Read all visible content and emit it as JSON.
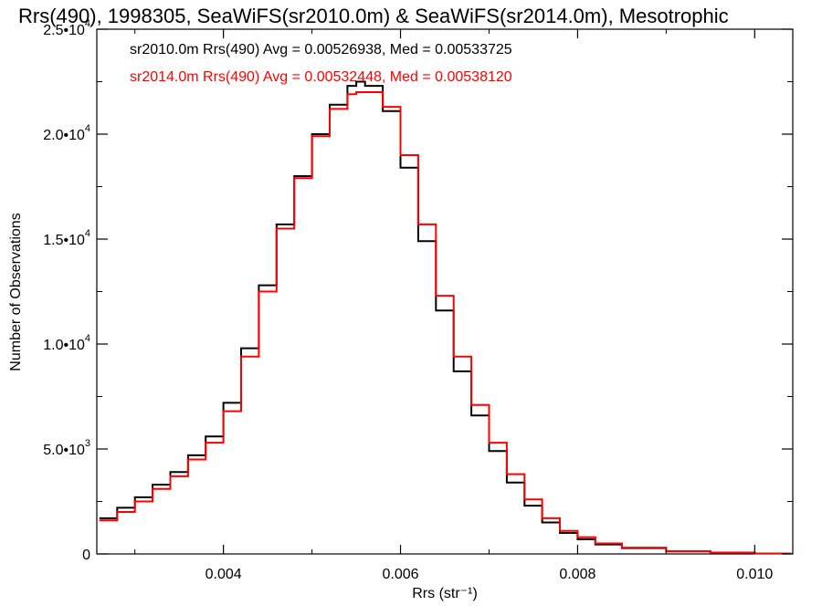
{
  "chart_data": {
    "type": "line",
    "title": "Rrs(490), 1998305, SeaWiFS(sr2010.0m) & SeaWiFS(sr2014.0m), Mesotrophic",
    "xlabel": "Rrs (str⁻¹)",
    "ylabel": "Number of Observations",
    "xlim": [
      0.00257,
      0.01043
    ],
    "ylim": [
      0,
      25000
    ],
    "grid": false,
    "x_ticks": [
      0.004,
      0.006,
      0.008,
      0.01
    ],
    "x_tick_labels": [
      "0.004",
      "0.006",
      "0.008",
      "0.010"
    ],
    "y_ticks": [
      0,
      5000,
      10000,
      15000,
      20000,
      25000
    ],
    "y_tick_labels": [
      {
        "mant": "0",
        "exp": ""
      },
      {
        "mant": "5.0•10",
        "exp": "3"
      },
      {
        "mant": "1.0•10",
        "exp": "4"
      },
      {
        "mant": "1.5•10",
        "exp": "4"
      },
      {
        "mant": "2.0•10",
        "exp": "4"
      },
      {
        "mant": "2.5•10",
        "exp": "4"
      }
    ],
    "legend_position": "top-left",
    "annotations": [
      {
        "text": "sr2010.0m Rrs(490) Avg = 0.00526938, Med = 0.00533725",
        "color": "#000000"
      },
      {
        "text": "sr2014.0m Rrs(490) Avg = 0.00532448, Med = 0.00538120",
        "color": "#ff0000"
      }
    ],
    "series": [
      {
        "color": "#000000",
        "x": [
          0.0026,
          0.0028,
          0.003,
          0.0032,
          0.0034,
          0.0036,
          0.0038,
          0.004,
          0.0042,
          0.0044,
          0.0046,
          0.0048,
          0.005,
          0.0052,
          0.0054,
          0.0055,
          0.0056,
          0.0058,
          0.006,
          0.0062,
          0.0064,
          0.0066,
          0.0068,
          0.007,
          0.0072,
          0.0074,
          0.0076,
          0.0078,
          0.008,
          0.0082,
          0.0085,
          0.009,
          0.0095,
          0.01,
          0.0104
        ],
        "y": [
          1700,
          2200,
          2700,
          3300,
          3900,
          4700,
          5600,
          7200,
          9800,
          12800,
          15700,
          18000,
          20000,
          21400,
          22300,
          22500,
          22300,
          21100,
          18400,
          14900,
          11600,
          8700,
          6600,
          4900,
          3400,
          2300,
          1500,
          1000,
          700,
          450,
          280,
          120,
          60,
          20,
          5
        ]
      },
      {
        "color": "#ff0000",
        "x": [
          0.0026,
          0.0028,
          0.003,
          0.0032,
          0.0034,
          0.0036,
          0.0038,
          0.004,
          0.0042,
          0.0044,
          0.0046,
          0.0048,
          0.005,
          0.0052,
          0.0054,
          0.0055,
          0.0056,
          0.0058,
          0.006,
          0.0062,
          0.0064,
          0.0066,
          0.0068,
          0.007,
          0.0072,
          0.0074,
          0.0076,
          0.0078,
          0.008,
          0.0082,
          0.0085,
          0.009,
          0.0095,
          0.01,
          0.0104
        ],
        "y": [
          1600,
          2000,
          2500,
          3100,
          3700,
          4500,
          5300,
          6800,
          9400,
          12500,
          15500,
          17900,
          19900,
          21200,
          21900,
          22000,
          22000,
          21300,
          19000,
          15700,
          12300,
          9400,
          7100,
          5300,
          3800,
          2600,
          1700,
          1100,
          800,
          500,
          300,
          130,
          60,
          20,
          5
        ]
      }
    ]
  }
}
